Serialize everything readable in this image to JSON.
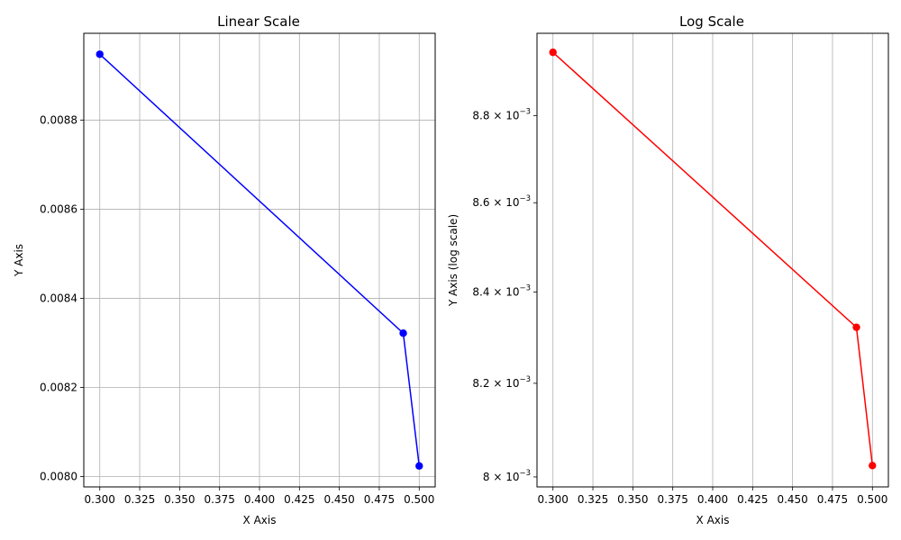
{
  "chart_data": [
    {
      "type": "line",
      "title": "Linear Scale",
      "xlabel": "X Axis",
      "ylabel": "Y Axis",
      "yscale": "linear",
      "grid": "both",
      "x": [
        0.3,
        0.49,
        0.5
      ],
      "series": [
        {
          "values": [
            0.008948,
            0.008322,
            0.008024
          ],
          "color": "#0000ff",
          "marker": "circle"
        }
      ],
      "xlim": [
        0.29,
        0.51
      ],
      "ylim": [
        0.007977,
        0.008995
      ],
      "xticks": [
        "0.300",
        "0.325",
        "0.350",
        "0.375",
        "0.400",
        "0.425",
        "0.450",
        "0.475",
        "0.500"
      ],
      "yticks": [
        "0.0080",
        "0.0082",
        "0.0084",
        "0.0086",
        "0.0088"
      ]
    },
    {
      "type": "line",
      "title": "Log Scale",
      "xlabel": "X Axis",
      "ylabel": "Y Axis (log scale)",
      "yscale": "log",
      "grid": "x-only",
      "x": [
        0.3,
        0.49,
        0.5
      ],
      "series": [
        {
          "values": [
            0.008948,
            0.008322,
            0.008024
          ],
          "color": "#ff0000",
          "marker": "circle"
        }
      ],
      "xlim": [
        0.29,
        0.51
      ],
      "ylim": [
        0.007979,
        0.008993
      ],
      "xticks": [
        "0.300",
        "0.325",
        "0.350",
        "0.375",
        "0.400",
        "0.425",
        "0.450",
        "0.475",
        "0.500"
      ],
      "yticks": [
        {
          "mantissa": "8",
          "exponent": "-3"
        },
        {
          "mantissa": "8.2",
          "exponent": "-3"
        },
        {
          "mantissa": "8.4",
          "exponent": "-3"
        },
        {
          "mantissa": "8.6",
          "exponent": "-3"
        },
        {
          "mantissa": "8.8",
          "exponent": "-3"
        }
      ]
    }
  ]
}
